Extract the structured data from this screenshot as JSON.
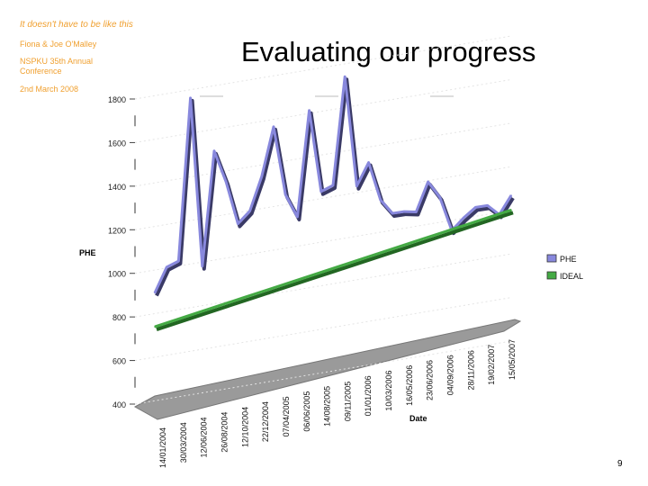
{
  "header": {
    "tagline": "It doesn't have to be like this",
    "authors": "Fiona & Joe O'Malley",
    "conference_line1": "NSPKU 35th Annual",
    "conference_line2": "Conference",
    "date": "2nd March 2008"
  },
  "slide": {
    "title": "Evaluating our progress",
    "page_number": "9"
  },
  "chart_data": {
    "type": "line",
    "title": "",
    "xlabel": "Date",
    "ylabel": "PHE",
    "ylim": [
      400,
      1800
    ],
    "yticks": [
      400,
      600,
      800,
      1000,
      1200,
      1400,
      1600,
      1800
    ],
    "x_tick_labels": [
      "14/01/2004",
      "30/03/2004",
      "12/06/2004",
      "26/08/2004",
      "12/10/2004",
      "22/12/2004",
      "07/04/2005",
      "06/06/2005",
      "14/08/2005",
      "09/11/2005",
      "01/01/2006",
      "10/03/2006",
      "16/05/2006",
      "23/06/2006",
      "04/09/2006",
      "28/11/2006",
      "19/02/2007",
      "15/05/2007"
    ],
    "legend": [
      "PHE",
      "IDEAL"
    ],
    "legend_position": "right",
    "series": [
      {
        "name": "PHE",
        "color": "#8888dd",
        "values": [
          910,
          1020,
          1040,
          1780,
          1000,
          1520,
          1370,
          1170,
          1220,
          1370,
          1590,
          1270,
          1160,
          1640,
          1260,
          1280,
          1770,
          1260,
          1360,
          1180,
          1110,
          1110,
          1100,
          1230,
          1150,
          990,
          1040,
          1080,
          1080,
          1030,
          1110
        ]
      },
      {
        "name": "IDEAL",
        "color": "#44aa44",
        "values": [
          755,
          773,
          791,
          809,
          827,
          845,
          863,
          881,
          899,
          917,
          935,
          953,
          971,
          989,
          1007,
          1025,
          1043
        ]
      }
    ]
  }
}
